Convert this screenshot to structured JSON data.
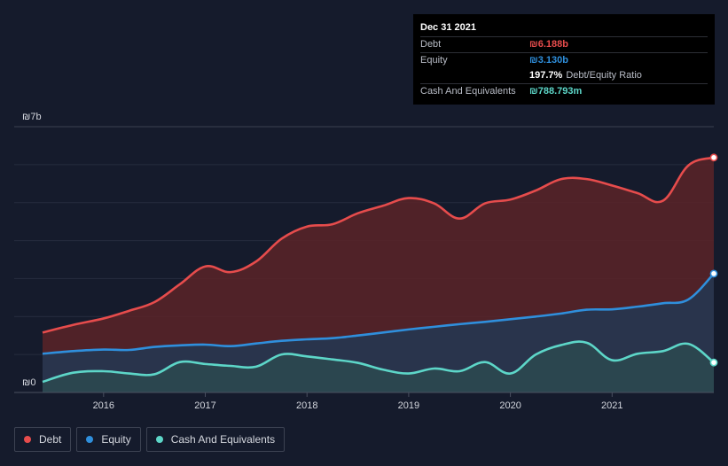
{
  "chart_data": {
    "type": "area",
    "currency": "₪",
    "y_axis": {
      "min": 0,
      "max": 7,
      "unit": "b",
      "labels": [
        "₪7b",
        "₪0"
      ]
    },
    "x_axis": {
      "min": 2015.4,
      "max": 2022.0,
      "ticks": [
        "2016",
        "2017",
        "2018",
        "2019",
        "2020",
        "2021"
      ],
      "tick_values": [
        2016,
        2017,
        2018,
        2019,
        2020,
        2021
      ]
    },
    "series": [
      {
        "name": "Debt",
        "color": "#e64c4c",
        "fill": "#5a2328",
        "points": [
          [
            2015.4,
            1.58
          ],
          [
            2015.7,
            1.78
          ],
          [
            2016.0,
            1.95
          ],
          [
            2016.25,
            2.15
          ],
          [
            2016.5,
            2.38
          ],
          [
            2016.75,
            2.85
          ],
          [
            2017.0,
            3.32
          ],
          [
            2017.25,
            3.17
          ],
          [
            2017.5,
            3.45
          ],
          [
            2017.75,
            4.05
          ],
          [
            2018.0,
            4.37
          ],
          [
            2018.25,
            4.43
          ],
          [
            2018.5,
            4.72
          ],
          [
            2018.75,
            4.92
          ],
          [
            2019.0,
            5.12
          ],
          [
            2019.25,
            4.98
          ],
          [
            2019.5,
            4.58
          ],
          [
            2019.75,
            4.98
          ],
          [
            2020.0,
            5.08
          ],
          [
            2020.25,
            5.32
          ],
          [
            2020.5,
            5.62
          ],
          [
            2020.75,
            5.62
          ],
          [
            2021.0,
            5.45
          ],
          [
            2021.25,
            5.25
          ],
          [
            2021.5,
            5.05
          ],
          [
            2021.75,
            5.98
          ],
          [
            2022.0,
            6.188
          ]
        ]
      },
      {
        "name": "Equity",
        "color": "#2f8fdc",
        "fill": "#223752",
        "points": [
          [
            2015.4,
            1.02
          ],
          [
            2015.7,
            1.09
          ],
          [
            2016.0,
            1.13
          ],
          [
            2016.25,
            1.12
          ],
          [
            2016.5,
            1.2
          ],
          [
            2016.75,
            1.24
          ],
          [
            2017.0,
            1.26
          ],
          [
            2017.25,
            1.22
          ],
          [
            2017.5,
            1.29
          ],
          [
            2017.75,
            1.36
          ],
          [
            2018.0,
            1.4
          ],
          [
            2018.25,
            1.43
          ],
          [
            2018.5,
            1.5
          ],
          [
            2018.75,
            1.58
          ],
          [
            2019.0,
            1.66
          ],
          [
            2019.25,
            1.73
          ],
          [
            2019.5,
            1.8
          ],
          [
            2019.75,
            1.86
          ],
          [
            2020.0,
            1.93
          ],
          [
            2020.25,
            2.0
          ],
          [
            2020.5,
            2.08
          ],
          [
            2020.75,
            2.18
          ],
          [
            2021.0,
            2.19
          ],
          [
            2021.25,
            2.26
          ],
          [
            2021.5,
            2.35
          ],
          [
            2021.75,
            2.45
          ],
          [
            2022.0,
            3.13
          ]
        ]
      },
      {
        "name": "Cash And Equivalents",
        "color": "#5dd6c8",
        "fill": "#2b4a50",
        "points": [
          [
            2015.4,
            0.28
          ],
          [
            2015.7,
            0.52
          ],
          [
            2016.0,
            0.56
          ],
          [
            2016.25,
            0.5
          ],
          [
            2016.5,
            0.48
          ],
          [
            2016.75,
            0.8
          ],
          [
            2017.0,
            0.75
          ],
          [
            2017.25,
            0.7
          ],
          [
            2017.5,
            0.68
          ],
          [
            2017.75,
            1.0
          ],
          [
            2018.0,
            0.95
          ],
          [
            2018.25,
            0.87
          ],
          [
            2018.5,
            0.78
          ],
          [
            2018.75,
            0.6
          ],
          [
            2019.0,
            0.5
          ],
          [
            2019.25,
            0.63
          ],
          [
            2019.5,
            0.56
          ],
          [
            2019.75,
            0.8
          ],
          [
            2020.0,
            0.5
          ],
          [
            2020.25,
            1.0
          ],
          [
            2020.5,
            1.25
          ],
          [
            2020.75,
            1.31
          ],
          [
            2021.0,
            0.85
          ],
          [
            2021.25,
            1.02
          ],
          [
            2021.5,
            1.09
          ],
          [
            2021.75,
            1.28
          ],
          [
            2022.0,
            0.789
          ]
        ]
      }
    ]
  },
  "tooltip": {
    "date": "Dec 31 2021",
    "debt_label": "Debt",
    "debt_value": "₪6.188b",
    "equity_label": "Equity",
    "equity_value": "₪3.130b",
    "ratio_value": "197.7%",
    "ratio_label": "Debt/Equity Ratio",
    "cash_label": "Cash And Equivalents",
    "cash_value": "₪788.793m"
  },
  "legend": [
    {
      "label": "Debt",
      "color": "#e64c4c"
    },
    {
      "label": "Equity",
      "color": "#2f8fdc"
    },
    {
      "label": "Cash And Equivalents",
      "color": "#5dd6c8"
    }
  ]
}
